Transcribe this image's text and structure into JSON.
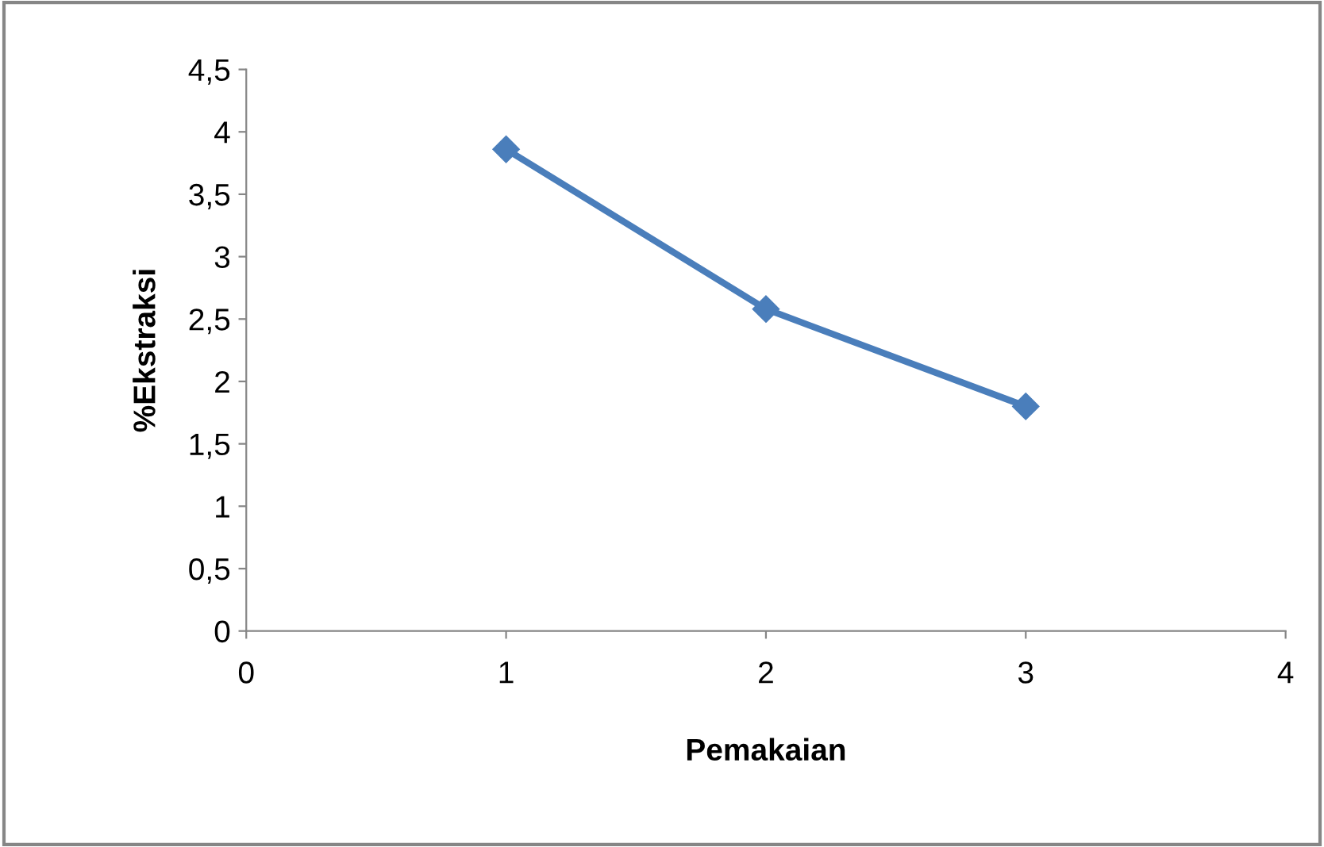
{
  "chart_data": {
    "type": "line",
    "xlabel": "Pemakaian",
    "ylabel": "%Ekstraksi",
    "x": [
      1,
      2,
      3
    ],
    "series": [
      {
        "color": "#4a7ebb",
        "values": [
          3.86,
          2.58,
          1.8
        ]
      }
    ],
    "xlim": [
      0,
      4
    ],
    "xticks": [
      0,
      1,
      2,
      3,
      4
    ],
    "ylim": [
      0,
      4.5
    ],
    "yticks": [
      0,
      {
        "value": 0.5,
        "label": "0,5"
      },
      1,
      {
        "value": 1.5,
        "label": "1,5"
      },
      2,
      {
        "value": 2.5,
        "label": "2,5"
      },
      3,
      {
        "value": 3.5,
        "label": "3,5"
      },
      4,
      {
        "value": 4.5,
        "label": "4,5"
      }
    ],
    "grid": false,
    "legend": false,
    "marker": "diamond",
    "line_style": "solid"
  }
}
